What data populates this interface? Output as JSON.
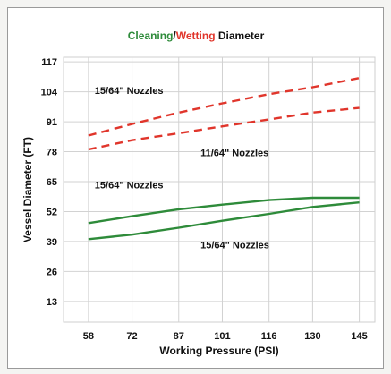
{
  "chart_data": {
    "type": "line",
    "title_parts": [
      {
        "text": "Cleaning",
        "color": "#2e8b3a"
      },
      {
        "text": "/",
        "color": "#111111"
      },
      {
        "text": "Wetting",
        "color": "#e0352b"
      },
      {
        "text": " Diameter",
        "color": "#111111"
      }
    ],
    "xlabel": "Working Pressure (PSI)",
    "ylabel": "Vessel Diameter (FT)",
    "x_ticks": [
      58,
      72,
      87,
      101,
      116,
      130,
      145
    ],
    "y_ticks": [
      13,
      26,
      39,
      52,
      65,
      78,
      91,
      104,
      117
    ],
    "xlim": [
      50,
      150
    ],
    "ylim": [
      4,
      119
    ],
    "grid": true,
    "series": [
      {
        "style": "dashed",
        "color": "#e0352b",
        "x": [
          58,
          72,
          87,
          101,
          116,
          130,
          145
        ],
        "y": [
          85,
          90,
          95,
          99,
          103,
          106,
          110
        ]
      },
      {
        "style": "dashed",
        "color": "#e0352b",
        "x": [
          58,
          72,
          87,
          101,
          116,
          130,
          145
        ],
        "y": [
          79,
          83,
          86,
          89,
          92,
          95,
          97
        ]
      },
      {
        "style": "solid",
        "color": "#2e8b3a",
        "x": [
          58,
          72,
          87,
          101,
          116,
          130,
          145
        ],
        "y": [
          47,
          50,
          53,
          55,
          57,
          58,
          58
        ]
      },
      {
        "style": "solid",
        "color": "#2e8b3a",
        "x": [
          58,
          72,
          87,
          101,
          116,
          130,
          145
        ],
        "y": [
          40,
          42,
          45,
          48,
          51,
          54,
          56
        ]
      }
    ],
    "annotations": [
      {
        "text": "15/64\" Nozzles",
        "x": 60,
        "y": 103
      },
      {
        "text": "11/64\" Nozzles",
        "x": 94,
        "y": 76
      },
      {
        "text": "15/64\" Nozzles",
        "x": 60,
        "y": 62
      },
      {
        "text": "15/64\" Nozzles",
        "x": 94,
        "y": 36
      }
    ]
  }
}
